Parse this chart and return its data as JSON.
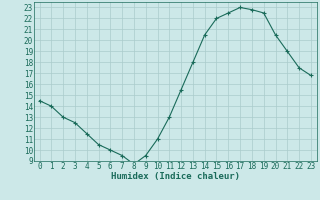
{
  "x": [
    0,
    1,
    2,
    3,
    4,
    5,
    6,
    7,
    8,
    9,
    10,
    11,
    12,
    13,
    14,
    15,
    16,
    17,
    18,
    19,
    20,
    21,
    22,
    23
  ],
  "y": [
    14.5,
    14.0,
    13.0,
    12.5,
    11.5,
    10.5,
    10.0,
    9.5,
    8.7,
    9.5,
    11.0,
    13.0,
    15.5,
    18.0,
    20.5,
    22.0,
    22.5,
    23.0,
    22.8,
    22.5,
    20.5,
    19.0,
    17.5,
    16.8
  ],
  "line_color": "#1a6b5a",
  "marker": "+",
  "marker_size": 3,
  "bg_color": "#cce8e8",
  "grid_color": "#aacccc",
  "xlabel": "Humidex (Indice chaleur)",
  "ylabel_ticks": [
    9,
    10,
    11,
    12,
    13,
    14,
    15,
    16,
    17,
    18,
    19,
    20,
    21,
    22,
    23
  ],
  "xlim": [
    -0.5,
    23.5
  ],
  "ylim": [
    9,
    23.5
  ],
  "tick_fontsize": 5.5,
  "xlabel_fontsize": 6.5
}
